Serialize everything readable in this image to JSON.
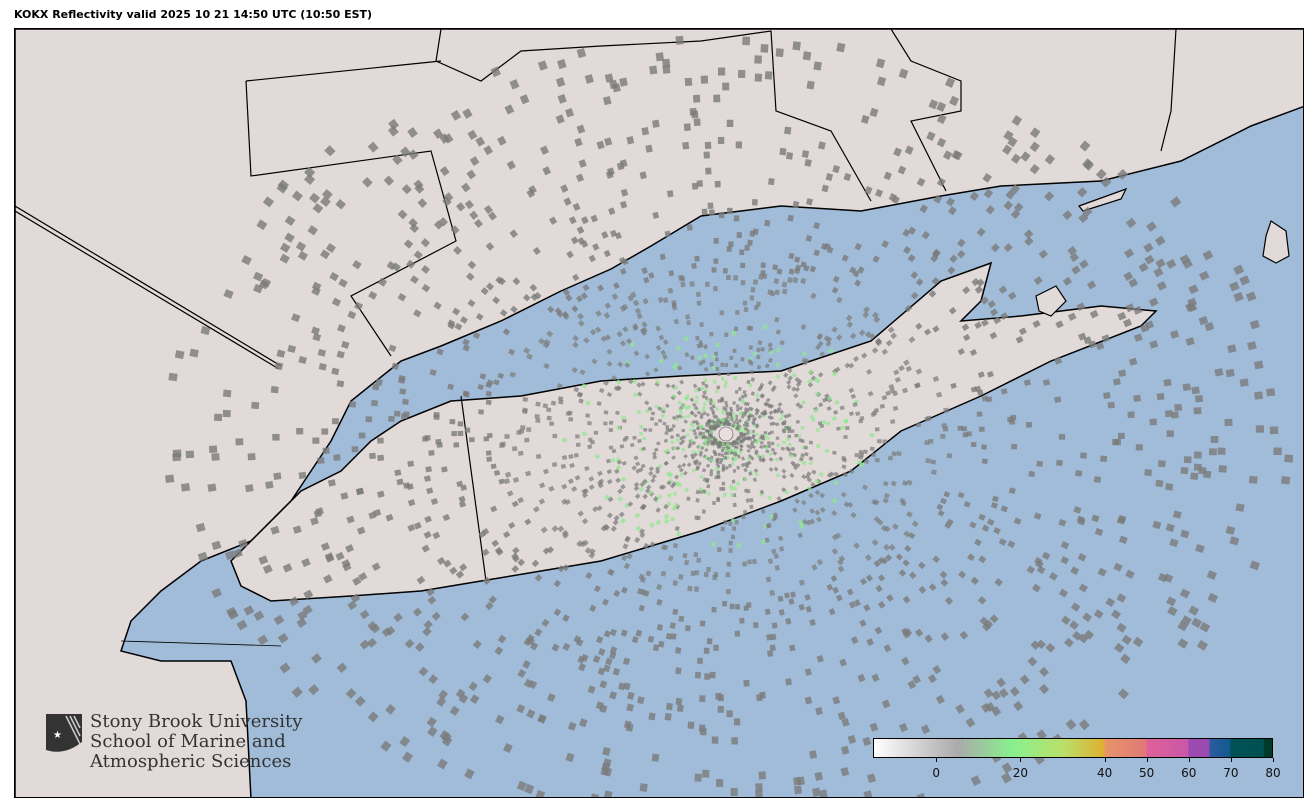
{
  "title": "KOKX Reflectivity valid 2025 10 21 14:50 UTC (10:50 EST)",
  "colors": {
    "ocean": "#a0bcd8",
    "land": "#e2dad8",
    "border": "#000000",
    "radar_gray": "#7a7a7a",
    "radar_green": "#8ee88e"
  },
  "logo": {
    "line1": "Stony Brook University",
    "line2": "School of Marine and",
    "line3": "Atmospheric Sciences"
  },
  "colorbar": {
    "range": [
      -15,
      80
    ],
    "ticks": [
      {
        "value": 0,
        "label": "0"
      },
      {
        "value": 20,
        "label": "20"
      },
      {
        "value": 40,
        "label": "40"
      },
      {
        "value": 50,
        "label": "50"
      },
      {
        "value": 60,
        "label": "60"
      },
      {
        "value": 70,
        "label": "70"
      },
      {
        "value": 80,
        "label": "80"
      }
    ],
    "stops": [
      {
        "value": -15,
        "color": "#ffffff"
      },
      {
        "value": 5,
        "color": "#aaaaaa"
      },
      {
        "value": 18,
        "color": "#88f08e"
      },
      {
        "value": 30,
        "color": "#b8e06a"
      },
      {
        "value": 40,
        "color": "#e0b030"
      },
      {
        "value": 40.1,
        "color": "#e8946a"
      },
      {
        "value": 50,
        "color": "#e07878"
      },
      {
        "value": 50.1,
        "color": "#e0609a"
      },
      {
        "value": 60,
        "color": "#c858a8"
      },
      {
        "value": 60.1,
        "color": "#9a4ab0"
      },
      {
        "value": 65,
        "color": "#9a4ab0"
      },
      {
        "value": 65.1,
        "color": "#2e5aa0"
      },
      {
        "value": 70,
        "color": "#125a90"
      },
      {
        "value": 70.1,
        "color": "#005058"
      },
      {
        "value": 78,
        "color": "#005050"
      },
      {
        "value": 78.1,
        "color": "#003a28"
      },
      {
        "value": 80,
        "color": "#003a28"
      }
    ]
  }
}
